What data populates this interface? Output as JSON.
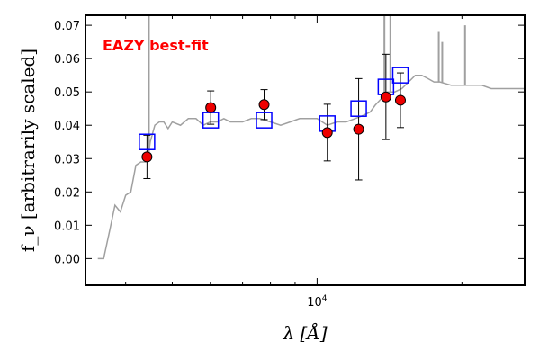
{
  "chart_data": {
    "type": "scatter",
    "title": "",
    "xlabel": "λ [Å]",
    "ylabel": "f_ν [arbitrarily scaled]",
    "xscale": "log",
    "xlim": [
      3300,
      27000
    ],
    "ylim": [
      -0.008,
      0.073
    ],
    "grid": false,
    "legend": "none",
    "annotation": {
      "text": "EAZY best-fit",
      "color": "#ff0000",
      "position": "top-left"
    },
    "y_ticks": [
      0.0,
      0.01,
      0.02,
      0.03,
      0.04,
      0.05,
      0.06,
      0.07
    ],
    "y_tick_labels": [
      "0.00",
      "0.01",
      "0.02",
      "0.03",
      "0.04",
      "0.05",
      "0.06",
      "0.07"
    ],
    "x_major_ticks": [
      10000
    ],
    "x_major_tick_labels": [
      "10^4"
    ],
    "x_minor_ticks": [
      4000,
      5000,
      6000,
      7000,
      8000,
      9000,
      20000
    ],
    "series": [
      {
        "kind": "template",
        "color": "#a0a0a0",
        "x": [
          3500,
          3600,
          3700,
          3800,
          3900,
          4000,
          4100,
          4200,
          4300,
          4400,
          4450,
          4500,
          4600,
          4700,
          4800,
          4900,
          5000,
          5200,
          5400,
          5600,
          5800,
          6000,
          6200,
          6400,
          6600,
          6800,
          7000,
          7300,
          7600,
          8000,
          8400,
          8800,
          9200,
          9600,
          10000,
          10500,
          11000,
          11500,
          12000,
          12500,
          12900,
          13200,
          13600,
          14000,
          14500,
          15000,
          15500,
          16000,
          16500,
          17000,
          17500,
          18000,
          19000,
          20000,
          21000,
          22000,
          23000,
          24000,
          25000,
          26000,
          27000
        ],
        "y": [
          0.0,
          0.0,
          0.008,
          0.016,
          0.014,
          0.019,
          0.02,
          0.028,
          0.029,
          0.029,
          0.03,
          0.035,
          0.04,
          0.041,
          0.041,
          0.039,
          0.041,
          0.04,
          0.042,
          0.042,
          0.04,
          0.041,
          0.041,
          0.042,
          0.041,
          0.041,
          0.041,
          0.042,
          0.042,
          0.041,
          0.04,
          0.041,
          0.042,
          0.042,
          0.042,
          0.04,
          0.041,
          0.041,
          0.042,
          0.043,
          0.044,
          0.046,
          0.048,
          0.05,
          0.05,
          0.051,
          0.053,
          0.055,
          0.055,
          0.054,
          0.053,
          0.053,
          0.052,
          0.052,
          0.052,
          0.052,
          0.051,
          0.051,
          0.051,
          0.051,
          0.051
        ]
      },
      {
        "kind": "template-emission-lines",
        "color": "#a0a0a0",
        "lines": [
          {
            "x": 4470,
            "y": 0.073
          },
          {
            "x": 13800,
            "y": 0.073
          },
          {
            "x": 14200,
            "y": 0.073
          },
          {
            "x": 17900,
            "y": 0.068
          },
          {
            "x": 18200,
            "y": 0.065
          },
          {
            "x": 20300,
            "y": 0.07
          }
        ]
      },
      {
        "kind": "model-photometry",
        "marker": "open-square",
        "color": "#0000ff",
        "x": [
          4430,
          6010,
          7760,
          10500,
          12200,
          13900,
          14900
        ],
        "y": [
          0.035,
          0.0415,
          0.0415,
          0.0405,
          0.045,
          0.0515,
          0.055
        ]
      },
      {
        "kind": "observed-photometry",
        "marker": "filled-circle",
        "color": "#ee0000",
        "x": [
          4430,
          6010,
          7760,
          10500,
          12200,
          13900,
          14900
        ],
        "y": [
          0.0305,
          0.0453,
          0.0462,
          0.0378,
          0.0388,
          0.0485,
          0.0475
        ],
        "yerr": [
          0.0065,
          0.005,
          0.0045,
          0.0085,
          0.0152,
          0.0128,
          0.0082
        ]
      }
    ]
  }
}
